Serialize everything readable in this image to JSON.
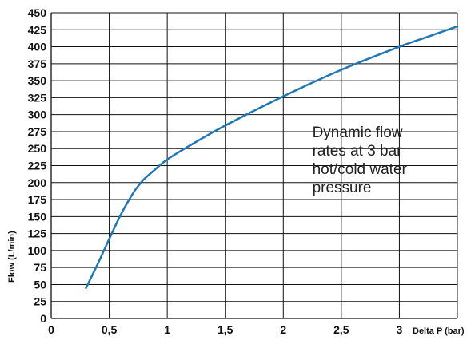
{
  "chart_data": {
    "type": "line",
    "title": "",
    "xlabel": "Delta P (bar)",
    "ylabel": "Flow (L/min)",
    "xlim": [
      0,
      3.5
    ],
    "ylim": [
      0,
      450
    ],
    "x_ticks": [
      0,
      0.5,
      1,
      1.5,
      2,
      2.5,
      3
    ],
    "x_tick_labels": [
      "0",
      "0,5",
      "1",
      "1,5",
      "2",
      "2,5",
      "3"
    ],
    "y_ticks": [
      0,
      25,
      50,
      75,
      100,
      125,
      150,
      175,
      200,
      225,
      250,
      275,
      300,
      325,
      350,
      375,
      400,
      425,
      450
    ],
    "y_tick_labels": [
      "0",
      "25",
      "50",
      "75",
      "100",
      "125",
      "150",
      "175",
      "200",
      "225",
      "250",
      "275",
      "300",
      "325",
      "350",
      "375",
      "400",
      "425",
      "450"
    ],
    "x_gridlines": [
      0.5,
      1,
      1.5,
      2,
      2.5,
      3,
      3.5
    ],
    "y_gridlines": [
      25,
      50,
      75,
      100,
      125,
      150,
      175,
      200,
      225,
      250,
      275,
      300,
      325,
      350,
      375,
      400,
      425
    ],
    "grid": true,
    "line_color": "#1f77b4",
    "series": [
      {
        "x": [
          0.3,
          0.4,
          0.5,
          0.6,
          0.7,
          0.75,
          0.8,
          0.9,
          1.0,
          1.2,
          1.5,
          2.0,
          2.5,
          3.0,
          3.25,
          3.5
        ],
        "values": [
          45,
          80,
          117,
          153,
          183,
          195,
          205,
          220,
          234,
          255,
          284,
          327,
          366,
          400,
          415,
          430
        ]
      }
    ],
    "annotation": {
      "lines": [
        "Dynamic flow",
        "rates at 3 bar",
        "hot/cold water",
        "pressure"
      ],
      "anchor_x": 2.25,
      "anchor_y": 267
    }
  }
}
